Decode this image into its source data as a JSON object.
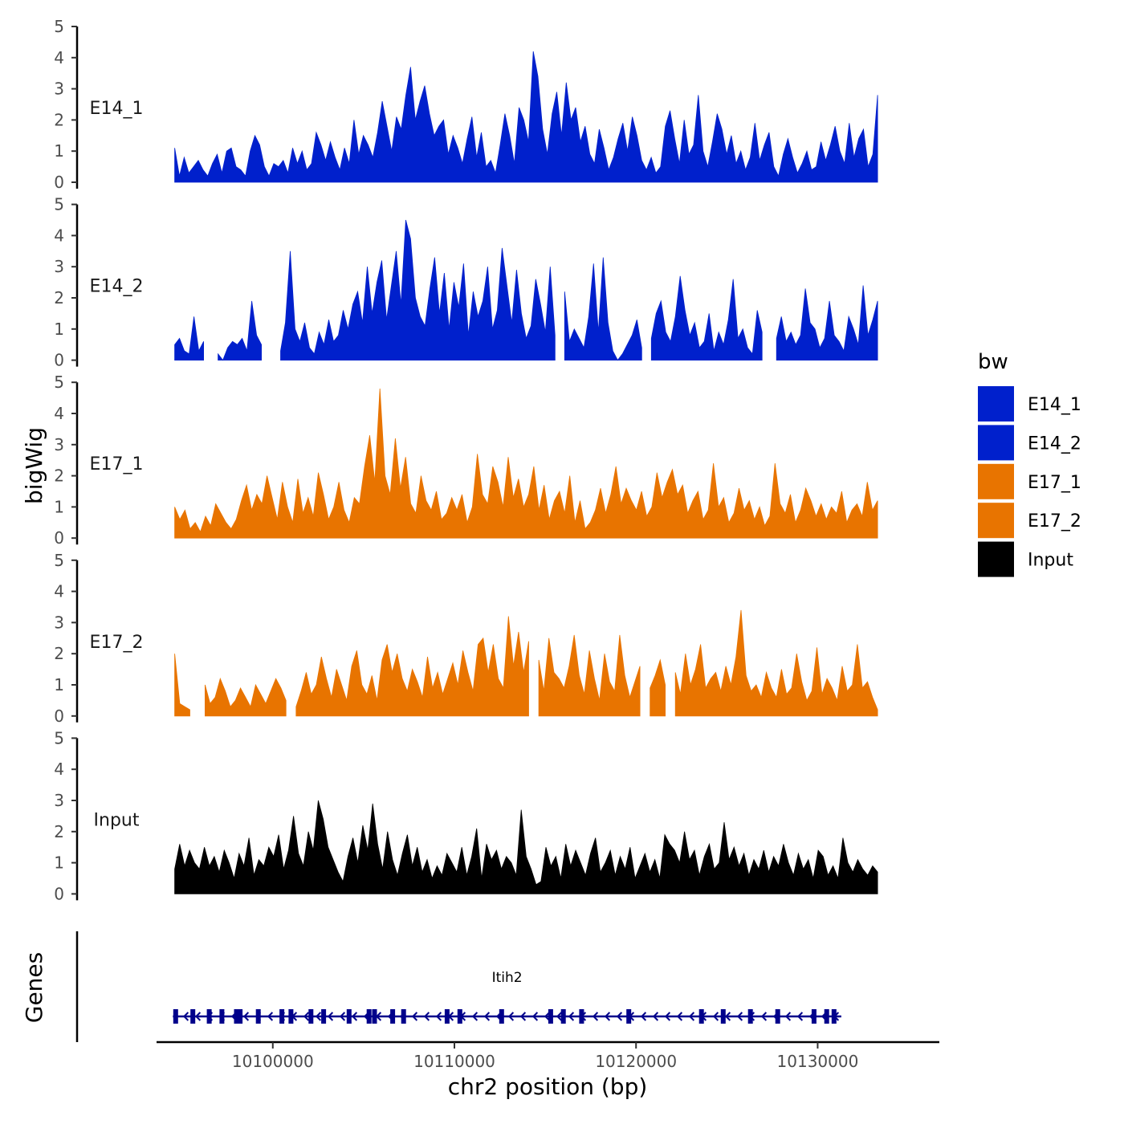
{
  "chart_data": {
    "type": "area",
    "title": "",
    "xlabel": "chr2 position (bp)",
    "ylabel": "bigWig",
    "genes_label": "Genes",
    "x_ticks": [
      10100000,
      10110000,
      10120000,
      10130000
    ],
    "x_tick_labels": [
      "10100000",
      "10110000",
      "10120000",
      "10130000"
    ],
    "xlim": [
      10093600,
      10136700
    ],
    "y_ticks": [
      0,
      1,
      2,
      3,
      4,
      5
    ],
    "y_tick_labels": [
      "0",
      "1",
      "2",
      "3",
      "4",
      "5"
    ],
    "ylim": [
      0,
      5
    ],
    "x_start": 10094600,
    "x_end": 10133300,
    "legend": {
      "title": "bw",
      "position": "right",
      "entries": [
        {
          "label": "E14_1",
          "color": "#0020CC"
        },
        {
          "label": "E14_2",
          "color": "#0020CC"
        },
        {
          "label": "E17_1",
          "color": "#E87400"
        },
        {
          "label": "E17_2",
          "color": "#E87400"
        },
        {
          "label": "Input",
          "color": "#000000"
        }
      ]
    },
    "series": [
      {
        "name": "E14_1",
        "label": "E14_1",
        "color": "#0020CC",
        "values": [
          1.1,
          0.2,
          0.8,
          0.3,
          0.5,
          0.7,
          0.4,
          0.2,
          0.6,
          0.9,
          0.3,
          1.0,
          1.1,
          0.5,
          0.4,
          0.2,
          1.0,
          1.5,
          1.2,
          0.5,
          0.2,
          0.6,
          0.5,
          0.7,
          0.3,
          1.1,
          0.6,
          1.0,
          0.4,
          0.6,
          1.6,
          1.2,
          0.7,
          1.3,
          0.8,
          0.4,
          1.1,
          0.6,
          2.0,
          0.9,
          1.5,
          1.2,
          0.8,
          1.6,
          2.6,
          1.8,
          1.0,
          2.1,
          1.7,
          2.8,
          3.7,
          2.0,
          2.6,
          3.1,
          2.2,
          1.5,
          1.8,
          2.0,
          0.9,
          1.5,
          1.1,
          0.6,
          1.4,
          2.1,
          0.8,
          1.6,
          0.5,
          0.7,
          0.3,
          1.2,
          2.2,
          1.5,
          0.6,
          2.4,
          2.0,
          1.3,
          4.2,
          3.4,
          1.7,
          0.9,
          2.2,
          2.9,
          1.5,
          3.2,
          2.0,
          2.4,
          1.3,
          1.8,
          0.9,
          0.6,
          1.7,
          1.1,
          0.4,
          0.8,
          1.4,
          1.9,
          1.0,
          2.1,
          1.5,
          0.7,
          0.4,
          0.8,
          0.3,
          0.5,
          1.8,
          2.3,
          1.4,
          0.6,
          2.0,
          0.9,
          1.2,
          2.8,
          1.0,
          0.5,
          1.3,
          2.2,
          1.7,
          0.9,
          1.5,
          0.6,
          1.0,
          0.4,
          0.8,
          1.9,
          0.7,
          1.2,
          1.6,
          0.5,
          0.2,
          0.9,
          1.4,
          0.8,
          0.3,
          0.6,
          1.0,
          0.4,
          0.5,
          1.3,
          0.7,
          1.2,
          1.8,
          1.0,
          0.6,
          1.9,
          0.8,
          1.4,
          1.7,
          0.5,
          0.9,
          2.8
        ],
        "gaps": []
      },
      {
        "name": "E14_2",
        "label": "E14_2",
        "color": "#0020CC",
        "values": [
          0.5,
          0.7,
          0.3,
          0.2,
          1.4,
          0.3,
          0.6,
          0.0,
          1.5,
          0.2,
          0.0,
          0.4,
          0.6,
          0.5,
          0.7,
          0.3,
          1.9,
          0.8,
          0.5,
          0.3,
          0.6,
          0.0,
          0.3,
          1.2,
          3.5,
          1.0,
          0.6,
          1.2,
          0.4,
          0.2,
          0.9,
          0.5,
          1.3,
          0.6,
          0.8,
          1.6,
          1.0,
          1.8,
          2.2,
          1.2,
          3.0,
          1.5,
          2.5,
          3.2,
          1.3,
          2.4,
          3.5,
          1.8,
          4.5,
          3.9,
          2.0,
          1.4,
          1.1,
          2.3,
          3.3,
          1.5,
          2.8,
          1.0,
          2.5,
          1.7,
          3.1,
          0.8,
          2.2,
          1.4,
          1.9,
          3.0,
          1.0,
          1.6,
          3.6,
          2.4,
          1.2,
          2.9,
          1.5,
          0.7,
          1.1,
          2.6,
          1.8,
          0.9,
          3.0,
          0.8,
          1.5,
          2.2,
          0.6,
          1.0,
          0.7,
          0.4,
          1.4,
          3.1,
          0.9,
          3.3,
          1.2,
          0.3,
          0.0,
          0.2,
          0.5,
          0.8,
          1.3,
          0.4,
          1.1,
          0.7,
          1.5,
          1.9,
          0.9,
          0.6,
          1.4,
          2.7,
          1.6,
          0.8,
          1.2,
          0.4,
          0.6,
          1.5,
          0.3,
          0.9,
          0.5,
          1.3,
          2.6,
          0.7,
          1.0,
          0.4,
          0.2,
          1.6,
          0.9,
          0.5,
          1.2,
          0.7,
          1.4,
          0.6,
          0.9,
          0.5,
          0.8,
          2.3,
          1.2,
          1.0,
          0.4,
          0.7,
          1.9,
          0.8,
          0.6,
          0.3,
          1.4,
          1.0,
          0.5,
          2.4,
          0.8,
          1.3,
          1.9
        ],
        "gaps": [
          [
            10096300,
            10096800
          ],
          [
            10099400,
            10100300
          ],
          [
            10115800,
            10116000
          ],
          [
            10120500,
            10120800
          ],
          [
            10127200,
            10127500
          ]
        ]
      },
      {
        "name": "E17_1",
        "label": "E17_1",
        "color": "#E87400",
        "values": [
          1.0,
          0.6,
          0.9,
          0.3,
          0.5,
          0.2,
          0.7,
          0.4,
          1.1,
          0.8,
          0.5,
          0.3,
          0.6,
          1.2,
          1.7,
          0.9,
          1.4,
          1.1,
          2.0,
          1.3,
          0.6,
          1.8,
          1.0,
          0.5,
          1.9,
          0.8,
          1.3,
          0.7,
          2.1,
          1.4,
          0.6,
          1.0,
          1.8,
          0.9,
          0.5,
          1.3,
          1.1,
          2.3,
          3.3,
          1.8,
          4.8,
          2.0,
          1.4,
          3.2,
          1.6,
          2.6,
          1.1,
          0.8,
          2.0,
          1.2,
          0.9,
          1.5,
          0.6,
          0.8,
          1.3,
          0.9,
          1.4,
          0.5,
          1.0,
          2.7,
          1.4,
          1.1,
          2.3,
          1.8,
          1.0,
          2.6,
          1.3,
          1.9,
          1.0,
          1.4,
          2.3,
          0.9,
          1.7,
          0.6,
          1.2,
          1.5,
          0.8,
          2.0,
          0.5,
          1.2,
          0.3,
          0.5,
          0.9,
          1.6,
          0.8,
          1.4,
          2.3,
          1.1,
          1.6,
          1.2,
          0.9,
          1.5,
          0.7,
          1.0,
          2.1,
          1.3,
          1.8,
          2.2,
          1.4,
          1.7,
          0.8,
          1.2,
          1.5,
          0.6,
          0.9,
          2.4,
          1.0,
          1.3,
          0.5,
          0.8,
          1.6,
          0.9,
          1.2,
          0.6,
          1.0,
          0.4,
          0.7,
          2.4,
          1.1,
          0.8,
          1.4,
          0.5,
          0.9,
          1.6,
          1.2,
          0.7,
          1.1,
          0.6,
          1.0,
          0.8,
          1.5,
          0.5,
          0.9,
          1.1,
          0.7,
          1.8,
          0.9,
          1.2
        ],
        "gaps": []
      },
      {
        "name": "E17_2",
        "label": "E17_2",
        "color": "#E87400",
        "values": [
          2.0,
          0.4,
          0.3,
          0.2,
          0.0,
          0.5,
          1.0,
          0.4,
          0.6,
          1.2,
          0.8,
          0.3,
          0.5,
          0.9,
          0.6,
          0.3,
          1.0,
          0.7,
          0.4,
          0.8,
          1.2,
          0.9,
          0.5,
          1.1,
          0.3,
          0.8,
          1.4,
          0.7,
          1.0,
          1.9,
          1.2,
          0.6,
          1.5,
          1.0,
          0.5,
          1.6,
          2.1,
          1.0,
          0.7,
          1.3,
          0.5,
          1.8,
          2.3,
          1.4,
          2.0,
          1.2,
          0.8,
          1.5,
          1.1,
          0.6,
          1.9,
          0.9,
          1.4,
          0.7,
          1.2,
          1.7,
          1.0,
          2.1,
          1.4,
          0.8,
          2.3,
          2.5,
          1.4,
          2.3,
          1.2,
          0.9,
          3.2,
          1.6,
          2.7,
          1.4,
          2.4,
          1.1,
          1.8,
          0.8,
          2.5,
          1.4,
          1.2,
          0.9,
          1.6,
          2.6,
          1.3,
          0.7,
          2.1,
          1.2,
          0.5,
          2.0,
          1.1,
          0.8,
          2.6,
          1.3,
          0.6,
          1.1,
          1.6,
          1.0,
          0.9,
          1.3,
          1.8,
          1.0,
          2.2,
          1.4,
          0.7,
          2.0,
          1.0,
          1.5,
          2.3,
          0.9,
          1.2,
          1.4,
          0.8,
          1.6,
          1.0,
          1.9,
          3.4,
          1.3,
          0.8,
          1.0,
          0.6,
          1.4,
          0.9,
          0.6,
          1.5,
          0.7,
          0.9,
          2.0,
          1.1,
          0.5,
          0.8,
          2.2,
          0.7,
          1.2,
          0.9,
          0.5,
          1.6,
          0.8,
          1.0,
          2.3,
          0.9,
          1.1,
          0.6,
          0.2
        ],
        "gaps": [
          [
            10095600,
            10096000
          ],
          [
            10100900,
            10101200
          ],
          [
            10114300,
            10114500
          ],
          [
            10120300,
            10120500
          ],
          [
            10121800,
            10122000
          ]
        ]
      },
      {
        "name": "Input",
        "label": "Input",
        "color": "#000000",
        "values": [
          0.8,
          1.6,
          0.9,
          1.4,
          1.0,
          0.8,
          1.5,
          0.9,
          1.2,
          0.7,
          1.4,
          1.0,
          0.5,
          1.3,
          0.9,
          1.8,
          0.6,
          1.1,
          0.9,
          1.5,
          1.2,
          1.9,
          0.8,
          1.4,
          2.5,
          1.3,
          0.9,
          2.0,
          1.4,
          3.0,
          2.4,
          1.5,
          1.1,
          0.7,
          0.4,
          1.2,
          1.8,
          1.0,
          2.2,
          1.4,
          2.9,
          1.6,
          0.8,
          2.0,
          1.1,
          0.6,
          1.3,
          1.9,
          0.9,
          1.5,
          0.7,
          1.1,
          0.5,
          0.9,
          0.6,
          1.3,
          1.0,
          0.7,
          1.5,
          0.6,
          1.2,
          2.1,
          0.5,
          1.6,
          1.1,
          1.4,
          0.8,
          1.2,
          1.0,
          0.6,
          2.7,
          1.2,
          0.8,
          0.3,
          0.4,
          1.5,
          0.9,
          1.2,
          0.5,
          1.6,
          0.9,
          1.4,
          1.0,
          0.6,
          1.3,
          1.8,
          0.7,
          1.0,
          1.4,
          0.6,
          1.2,
          0.8,
          1.5,
          0.5,
          0.9,
          1.3,
          0.7,
          1.1,
          0.5,
          1.9,
          1.6,
          1.4,
          1.0,
          2.0,
          1.1,
          1.4,
          0.6,
          1.2,
          1.6,
          0.8,
          1.0,
          2.3,
          1.1,
          1.5,
          0.9,
          1.3,
          0.6,
          1.1,
          0.8,
          1.4,
          0.7,
          1.2,
          0.9,
          1.6,
          1.0,
          0.6,
          1.3,
          0.8,
          1.1,
          0.5,
          1.4,
          1.2,
          0.6,
          0.9,
          0.5,
          1.8,
          1.0,
          0.7,
          1.1,
          0.8,
          0.6,
          0.9,
          0.7
        ],
        "gaps": []
      }
    ],
    "gene": {
      "name": "Itih2",
      "strand": "-",
      "start": 10094500,
      "end": 10131300,
      "exons": [
        10094650,
        10095600,
        10096500,
        10097200,
        10098000,
        10098200,
        10099200,
        10100500,
        10101000,
        10102100,
        10102800,
        10104200,
        10105300,
        10105600,
        10106600,
        10107200,
        10109600,
        10110300,
        10112600,
        10115300,
        10116000,
        10117000,
        10119600,
        10123600,
        10124800,
        10126300,
        10127800,
        10129800,
        10130500,
        10130900
      ]
    }
  }
}
